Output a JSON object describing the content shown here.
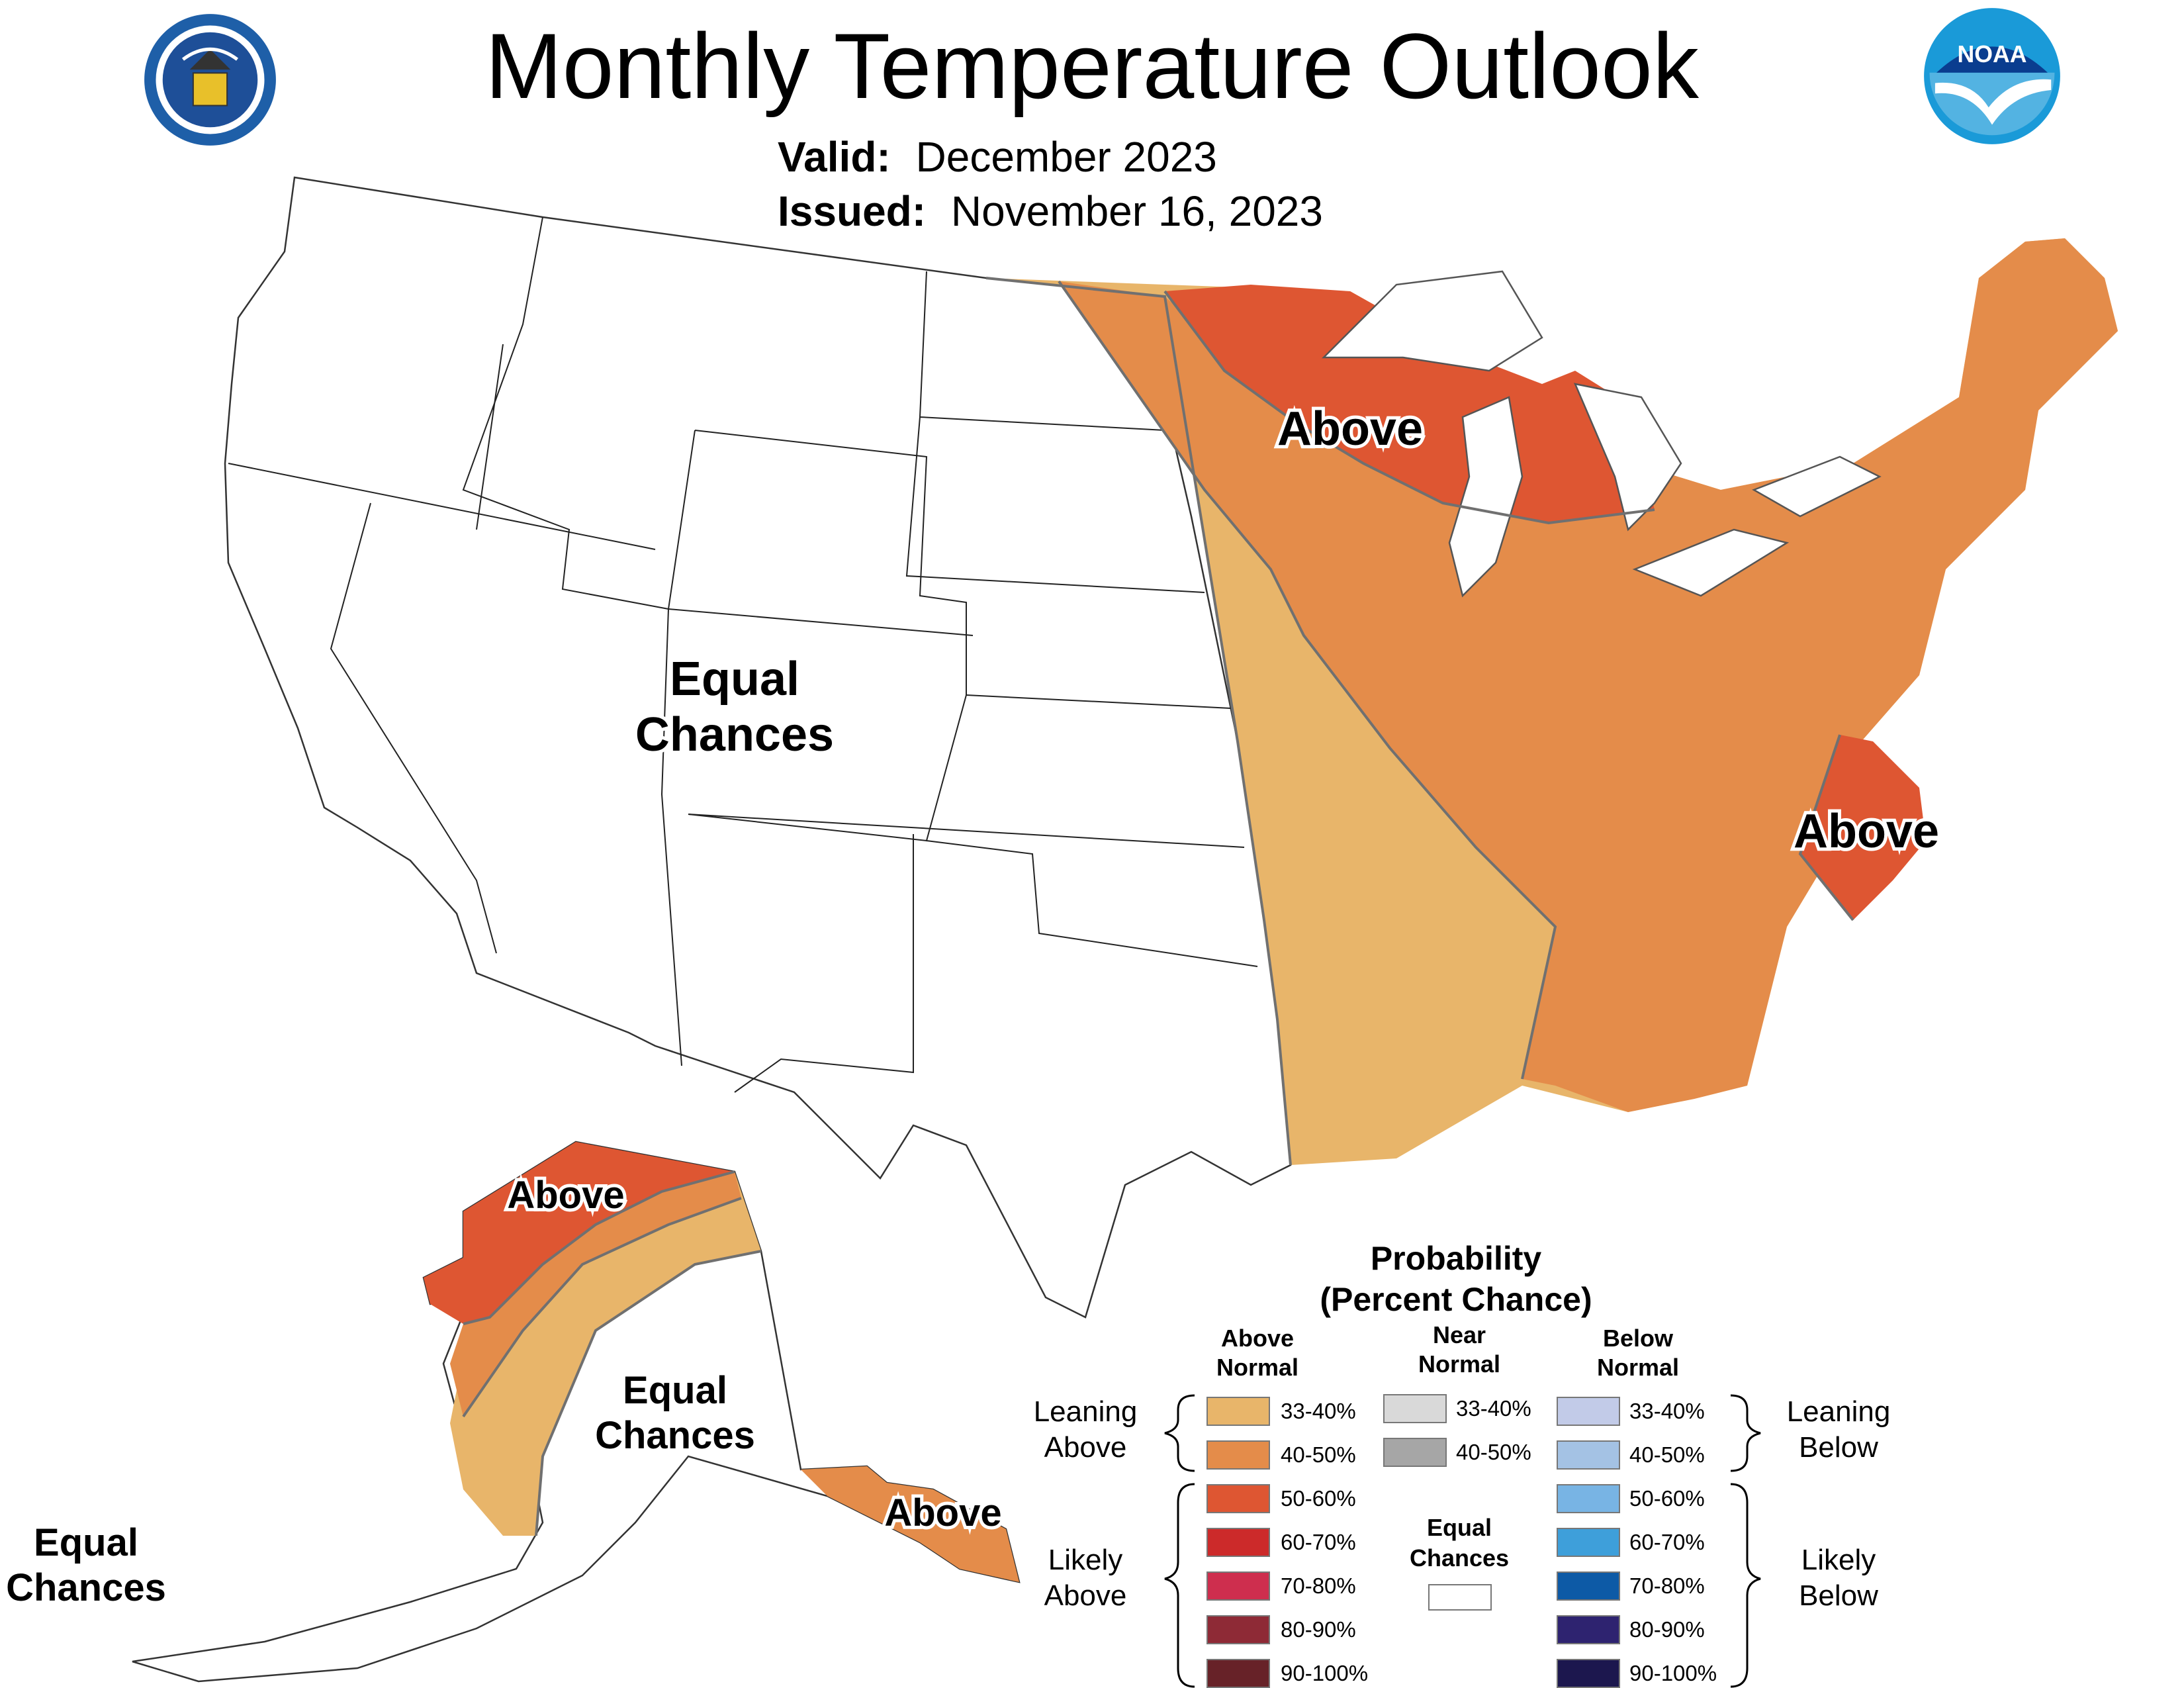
{
  "header": {
    "title": "Monthly Temperature Outlook",
    "valid_label": "Valid:",
    "valid_value": "December 2023",
    "issued_label": "Issued:",
    "issued_value": "November 16, 2023"
  },
  "logos": {
    "left": "department-of-commerce-seal",
    "right": "noaa-logo",
    "right_text": "NOAA"
  },
  "map_labels": {
    "conus_west": [
      "Equal",
      "Chances"
    ],
    "great_lakes": "Above",
    "north_carolina": "Above",
    "alaska_north": "Above",
    "alaska_interior": [
      "Equal",
      "Chances"
    ],
    "alaska_southeast": "Above",
    "aleutians": [
      "Equal",
      "Chances"
    ]
  },
  "legend": {
    "title_line1": "Probability",
    "title_line2": "(Percent Chance)",
    "columns": [
      {
        "name": "Above Normal",
        "line1": "Above",
        "line2": "Normal"
      },
      {
        "name": "Near Normal",
        "line1": "Near",
        "line2": "Normal"
      },
      {
        "name": "Below Normal",
        "line1": "Below",
        "line2": "Normal"
      }
    ],
    "above": [
      {
        "label": "33-40%",
        "color": "#E8B56A"
      },
      {
        "label": "40-50%",
        "color": "#E48C4A"
      },
      {
        "label": "50-60%",
        "color": "#DE5632"
      },
      {
        "label": "60-70%",
        "color": "#CC2A2A"
      },
      {
        "label": "70-80%",
        "color": "#CE2E4E"
      },
      {
        "label": "80-90%",
        "color": "#8E2A36"
      },
      {
        "label": "90-100%",
        "color": "#672228"
      }
    ],
    "near": [
      {
        "label": "33-40%",
        "color": "#D9D9D9"
      },
      {
        "label": "40-50%",
        "color": "#A6A6A6"
      }
    ],
    "below": [
      {
        "label": "33-40%",
        "color": "#C2CBE8"
      },
      {
        "label": "40-50%",
        "color": "#A4C2E4"
      },
      {
        "label": "50-60%",
        "color": "#78B4E4"
      },
      {
        "label": "60-70%",
        "color": "#3E9FDA"
      },
      {
        "label": "70-80%",
        "color": "#0D5AA6"
      },
      {
        "label": "80-90%",
        "color": "#2E2370"
      },
      {
        "label": "90-100%",
        "color": "#1C174E"
      }
    ],
    "leaning_above": [
      "Leaning",
      "Above"
    ],
    "likely_above": [
      "Likely",
      "Above"
    ],
    "leaning_below": [
      "Leaning",
      "Below"
    ],
    "likely_below": [
      "Likely",
      "Below"
    ],
    "equal_chances": [
      "Equal",
      "Chances"
    ]
  }
}
